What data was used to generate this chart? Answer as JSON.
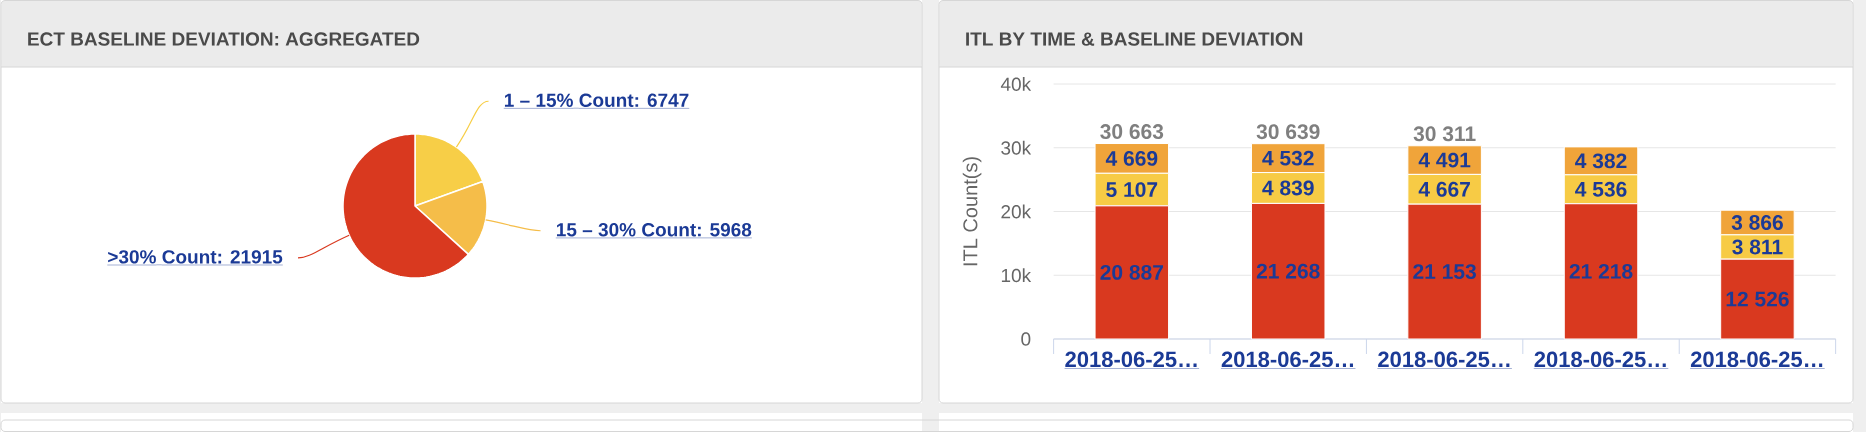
{
  "chart_data": [
    {
      "type": "pie",
      "title": "ECT BASELINE DEVIATION: AGGREGATED",
      "categories": [
        "1 – 15%",
        "15 – 30%",
        ">30%"
      ],
      "values": [
        6747,
        5968,
        21915
      ],
      "value_labels": [
        "Count: 6747",
        "Count: 5968",
        "Count: 21915"
      ],
      "colors": [
        "#f7ce47",
        "#f5bd49",
        "#d9391f"
      ]
    },
    {
      "type": "bar",
      "stacked": true,
      "title": "ITL BY TIME & BASELINE DEVIATION",
      "ylabel": "ITL Count(s)",
      "categories": [
        "2018-06-25…",
        "2018-06-25…",
        "2018-06-25…",
        "2018-06-25…",
        "2018-06-25…"
      ],
      "series": [
        {
          "color": "#d9391f",
          "values": [
            20887,
            21268,
            21153,
            21218,
            12526
          ],
          "value_labels": [
            "20 887",
            "21 268",
            "21 153",
            "21 218",
            "12 526"
          ]
        },
        {
          "color": "#f7cb45",
          "values": [
            5107,
            4839,
            4667,
            4536,
            3811
          ],
          "value_labels": [
            "5 107",
            "4 839",
            "4 667",
            "4 536",
            "3 811"
          ]
        },
        {
          "color": "#f0a43a",
          "values": [
            4669,
            4532,
            4491,
            4382,
            3866
          ],
          "value_labels": [
            "4 669",
            "4 532",
            "4 491",
            "4 382",
            "3 866"
          ]
        }
      ],
      "totals": [
        "30 663",
        "30 639",
        "30 311",
        null,
        null
      ],
      "ylim": [
        0,
        40000
      ],
      "yticks": [
        0,
        {
          "value": 10000,
          "label": "10k"
        },
        {
          "value": 20000,
          "label": "20k"
        },
        {
          "value": 30000,
          "label": "30k"
        },
        {
          "value": 40000,
          "label": "40k"
        }
      ],
      "grid": "y"
    }
  ]
}
